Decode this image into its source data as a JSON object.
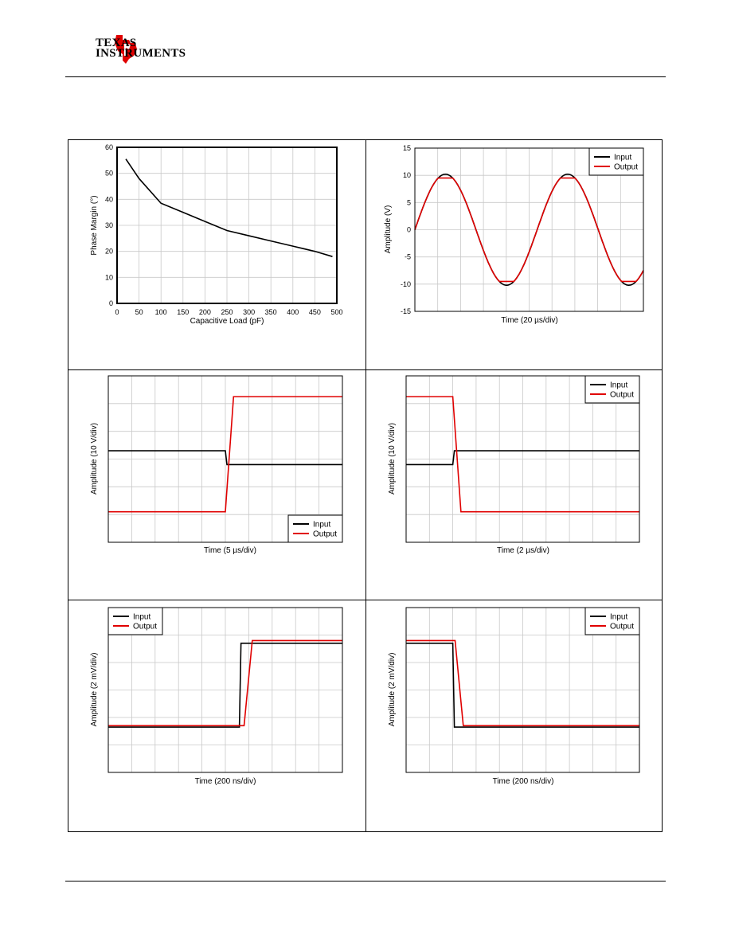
{
  "header": {
    "logo_line1": "TEXAS",
    "logo_line2": "INSTRUMENTS"
  },
  "colors": {
    "input": "#000000",
    "output": "#e00000",
    "grid": "#c8c8c8"
  },
  "chart_data": [
    {
      "type": "line",
      "xlabel": "Capacitive Load (pF)",
      "ylabel": "Phase Margin (°)",
      "xlim": [
        0,
        500
      ],
      "ylim": [
        0,
        60
      ],
      "xticks": [
        0,
        50,
        100,
        150,
        200,
        250,
        300,
        350,
        400,
        450,
        500
      ],
      "yticks": [
        0,
        10,
        20,
        30,
        40,
        50,
        60
      ],
      "grid": true,
      "series": [
        {
          "x": [
            20,
            50,
            100,
            150,
            200,
            250,
            300,
            350,
            400,
            450,
            490
          ],
          "values": [
            55.5,
            48,
            38.5,
            35,
            31.5,
            28,
            26,
            24,
            22,
            20,
            18
          ]
        }
      ]
    },
    {
      "type": "line",
      "xlabel": "Time (20 µs/div)",
      "ylabel": "Amplitude (V)",
      "ylim": [
        -15,
        15
      ],
      "yticks": [
        -15,
        -10,
        -5,
        0,
        5,
        10,
        15
      ],
      "legend": "top-right",
      "grid": true,
      "series": [
        {
          "name": "Input",
          "kind": "sine",
          "amplitude": 10.2
        },
        {
          "name": "Output",
          "kind": "sine-clipped",
          "amplitude": 10.2,
          "clip": 9.5
        }
      ]
    },
    {
      "type": "line",
      "xlabel": "Time (5 µs/div)",
      "ylabel": "Amplitude (10 V/div)",
      "legend": "bottom-right",
      "grid": true,
      "series": [
        {
          "name": "Input",
          "kind": "step",
          "before": 3.3,
          "after": 2.8,
          "edge": 0.5
        },
        {
          "name": "Output",
          "kind": "step",
          "before": 1.1,
          "after": 5.25,
          "edge": 0.5
        }
      ]
    },
    {
      "type": "line",
      "xlabel": "Time (2 µs/div)",
      "ylabel": "Amplitude (10 V/div)",
      "legend": "top-right",
      "grid": true,
      "series": [
        {
          "name": "Input",
          "kind": "step",
          "before": 2.8,
          "after": 3.3,
          "edge": 0.2
        },
        {
          "name": "Output",
          "kind": "step",
          "before": 5.25,
          "after": 1.1,
          "edge": 0.2
        }
      ]
    },
    {
      "type": "line",
      "xlabel": "Time (200 ns/div)",
      "ylabel": "Amplitude (2 mV/div)",
      "legend": "top-left",
      "grid": true,
      "series": [
        {
          "name": "Input",
          "kind": "step",
          "before": 1.65,
          "after": 4.7,
          "edge": 0.56
        },
        {
          "name": "Output",
          "kind": "step",
          "before": 1.7,
          "after": 4.8,
          "edge": 0.58
        }
      ]
    },
    {
      "type": "line",
      "xlabel": "Time (200 ns/div)",
      "ylabel": "Amplitude (2 mV/div)",
      "legend": "top-right",
      "grid": true,
      "series": [
        {
          "name": "Input",
          "kind": "step",
          "before": 4.7,
          "after": 1.65,
          "edge": 0.2
        },
        {
          "name": "Output",
          "kind": "step",
          "before": 4.8,
          "after": 1.7,
          "edge": 0.21
        }
      ]
    }
  ]
}
